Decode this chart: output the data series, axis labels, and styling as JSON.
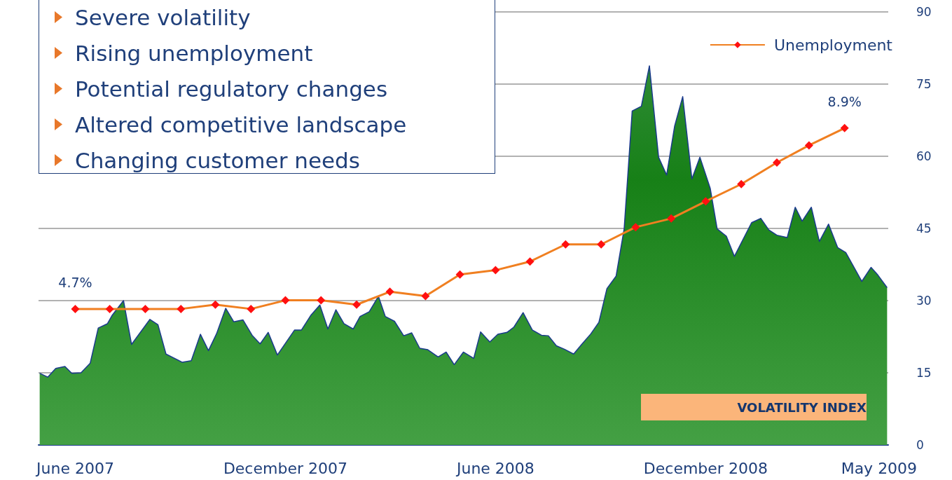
{
  "chart_data": {
    "type": "area",
    "annotations": [
      "Severe volatility",
      "Rising unemployment",
      "Potential regulatory changes",
      "Altered competitive landscape",
      "Changing customer needs",
      "VOLATILITY INDEX"
    ],
    "xlim": [
      "2007-04-30",
      "2009-05-09"
    ],
    "xticks": [
      {
        "value": "2007-06",
        "label": "June 2007"
      },
      {
        "value": "2007-12",
        "label": "December 2007"
      },
      {
        "value": "2008-06",
        "label": "June 2008"
      },
      {
        "value": "2008-12",
        "label": "December 2008"
      },
      {
        "value": "2009-05",
        "label": "May 2009"
      }
    ],
    "ylim": [
      0,
      90
    ],
    "yticks": [
      0,
      15,
      30,
      45,
      60,
      75,
      90
    ],
    "y2lim": [
      1.54,
      11.6
    ],
    "grid": "y",
    "legend": "top right",
    "series": [
      {
        "color": "#2e8b35",
        "x": [
          "2007-05-01",
          "2007-05-08",
          "2007-05-15",
          "2007-05-23",
          "2007-05-29",
          "2007-06-06",
          "2007-06-14",
          "2007-06-21",
          "2007-06-29",
          "2007-07-03",
          "2007-07-13",
          "2007-07-20",
          "2007-08-05",
          "2007-08-12",
          "2007-08-19",
          "2007-09-02",
          "2007-09-10",
          "2007-09-18",
          "2007-09-25",
          "2007-10-02",
          "2007-10-10",
          "2007-10-17",
          "2007-10-25",
          "2007-11-02",
          "2007-11-09",
          "2007-11-16",
          "2007-11-24",
          "2007-12-09",
          "2007-12-15",
          "2007-12-23",
          "2007-12-31",
          "2008-01-07",
          "2008-01-14",
          "2008-01-21",
          "2008-01-29",
          "2008-02-04",
          "2008-02-12",
          "2008-02-20",
          "2008-02-26",
          "2008-03-05",
          "2008-03-13",
          "2008-03-20",
          "2008-03-27",
          "2008-04-03",
          "2008-04-12",
          "2008-04-19",
          "2008-04-26",
          "2008-05-04",
          "2008-05-13",
          "2008-05-19",
          "2008-05-27",
          "2008-06-03",
          "2008-06-11",
          "2008-06-17",
          "2008-06-25",
          "2008-07-03",
          "2008-07-11",
          "2008-07-17",
          "2008-07-24",
          "2008-07-31",
          "2008-08-08",
          "2008-08-15",
          "2008-08-23",
          "2008-08-30",
          "2008-09-06",
          "2008-09-14",
          "2008-09-21",
          "2008-09-28",
          "2008-10-06",
          "2008-10-13",
          "2008-10-21",
          "2008-10-28",
          "2008-11-04",
          "2008-11-11",
          "2008-11-19",
          "2008-11-26",
          "2008-12-05",
          "2008-12-11",
          "2008-12-19",
          "2008-12-26",
          "2009-01-10",
          "2009-01-18",
          "2009-01-25",
          "2009-02-01",
          "2009-02-10",
          "2009-02-17",
          "2009-02-23",
          "2009-03-03",
          "2009-03-10",
          "2009-03-18",
          "2009-03-26",
          "2009-04-02",
          "2009-04-16",
          "2009-04-24",
          "2009-04-30",
          "2009-05-08"
        ],
        "values": [
          14.9,
          14.1,
          15.9,
          16.3,
          14.9,
          15.0,
          17.0,
          24.3,
          25.2,
          26.9,
          30.0,
          20.9,
          26.1,
          25.0,
          18.9,
          17.2,
          17.5,
          23.0,
          19.6,
          23.1,
          28.4,
          25.6,
          26.0,
          22.8,
          21.0,
          23.4,
          18.7,
          23.9,
          23.9,
          26.9,
          29.1,
          24.1,
          28.1,
          25.2,
          24.1,
          26.7,
          27.7,
          30.9,
          26.7,
          25.7,
          22.7,
          23.3,
          20.1,
          19.8,
          18.3,
          19.3,
          16.7,
          19.3,
          18.0,
          23.5,
          21.4,
          23.0,
          23.4,
          24.5,
          27.5,
          23.9,
          22.8,
          22.7,
          20.6,
          19.9,
          18.9,
          20.9,
          23.1,
          25.5,
          32.5,
          35.1,
          44.9,
          69.4,
          70.4,
          78.8,
          59.8,
          56.1,
          66.3,
          72.4,
          55.3,
          59.8,
          53.3,
          44.9,
          43.4,
          39.2,
          46.2,
          47.1,
          44.7,
          43.6,
          43.1,
          49.4,
          46.5,
          49.4,
          42.3,
          45.9,
          41.0,
          40.0,
          34.0,
          36.9,
          35.3,
          32.7
        ]
      },
      {
        "type": "line",
        "name": "Unemployment",
        "color": "#f07f20",
        "axis": "y2",
        "marker": "diamond",
        "x": [
          "2007-06-01",
          "2007-07-01",
          "2007-08-01",
          "2007-09-01",
          "2007-10-01",
          "2007-11-01",
          "2007-12-01",
          "2008-01-01",
          "2008-02-01",
          "2008-03-01",
          "2008-04-01",
          "2008-05-01",
          "2008-06-01",
          "2008-07-01",
          "2008-08-01",
          "2008-09-01",
          "2008-10-01",
          "2008-11-01",
          "2008-12-01",
          "2009-01-01",
          "2009-02-01",
          "2009-03-01",
          "2009-04-01"
        ],
        "values": [
          4.7,
          4.7,
          4.7,
          4.7,
          4.8,
          4.7,
          4.9,
          4.9,
          4.8,
          5.1,
          5.0,
          5.5,
          5.6,
          5.8,
          6.2,
          6.2,
          6.6,
          6.8,
          7.2,
          7.6,
          8.1,
          8.5,
          8.9
        ],
        "value_labels": [
          "4.7%",
          null,
          null,
          null,
          null,
          null,
          null,
          null,
          null,
          null,
          null,
          null,
          null,
          null,
          null,
          null,
          null,
          null,
          null,
          null,
          null,
          null,
          "8.9%"
        ]
      }
    ]
  }
}
